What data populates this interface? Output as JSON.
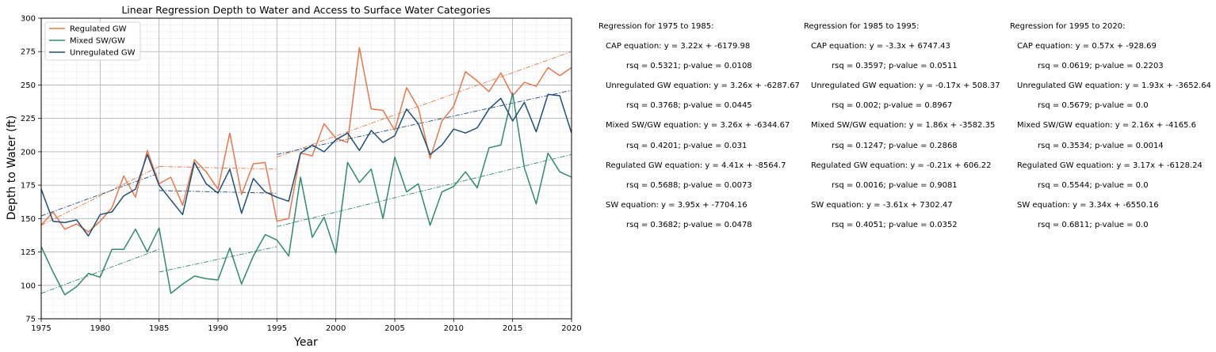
{
  "chart_data": {
    "type": "line",
    "title": "Linear Regression Depth to Water and Access to Surface Water Categories",
    "xlabel": "Year",
    "ylabel": "Depth to Water (ft)",
    "xlim": [
      1975,
      2020
    ],
    "ylim": [
      75,
      300
    ],
    "xticks": [
      1975,
      1980,
      1985,
      1990,
      1995,
      2000,
      2005,
      2010,
      2015,
      2020
    ],
    "yticks": [
      75,
      100,
      125,
      150,
      175,
      200,
      225,
      250,
      275,
      300
    ],
    "grid": true,
    "legend_position": "top-left",
    "x": [
      1975,
      1976,
      1977,
      1978,
      1979,
      1980,
      1981,
      1982,
      1983,
      1984,
      1985,
      1986,
      1987,
      1988,
      1989,
      1990,
      1991,
      1992,
      1993,
      1994,
      1995,
      1996,
      1997,
      1998,
      1999,
      2000,
      2001,
      2002,
      2003,
      2004,
      2005,
      2006,
      2007,
      2008,
      2009,
      2010,
      2011,
      2012,
      2013,
      2014,
      2015,
      2016,
      2017,
      2018,
      2019,
      2020
    ],
    "series": [
      {
        "name": "Regulated GW",
        "color": "#E8784A",
        "values": [
          145,
          155,
          142,
          146,
          140,
          148,
          158,
          182,
          166,
          201,
          176,
          181,
          160,
          194,
          185,
          172,
          214,
          168,
          191,
          192,
          148,
          150,
          199,
          197,
          221,
          210,
          207,
          278,
          232,
          231,
          216,
          248,
          233,
          195,
          223,
          234,
          260,
          253,
          245,
          259,
          242,
          252,
          249,
          263,
          257,
          263
        ]
      },
      {
        "name": "Mixed SW/GW",
        "color": "#2E8B6B",
        "values": [
          129,
          110,
          93,
          99,
          109,
          106,
          127,
          127,
          142,
          125,
          143,
          94,
          101,
          107,
          105,
          104,
          128,
          101,
          122,
          138,
          134,
          122,
          181,
          136,
          151,
          124,
          192,
          177,
          187,
          150,
          196,
          170,
          176,
          145,
          170,
          174,
          185,
          173,
          203,
          205,
          244,
          188,
          161,
          199,
          185,
          181
        ]
      },
      {
        "name": "Unregulated GW",
        "color": "#1F4E79",
        "values": [
          172,
          148,
          147,
          149,
          137,
          153,
          155,
          167,
          172,
          198,
          175,
          164,
          153,
          192,
          176,
          169,
          187,
          154,
          180,
          170,
          166,
          163,
          199,
          205,
          200,
          209,
          214,
          201,
          216,
          207,
          212,
          232,
          221,
          198,
          205,
          217,
          214,
          218,
          232,
          240,
          223,
          237,
          215,
          243,
          242,
          214
        ]
      }
    ],
    "regression_lines": [
      {
        "series": "Regulated GW",
        "x": [
          1975,
          1985
        ],
        "y": [
          145,
          189
        ]
      },
      {
        "series": "Regulated GW",
        "x": [
          1985,
          1995
        ],
        "y": [
          189,
          187
        ]
      },
      {
        "series": "Regulated GW",
        "x": [
          1995,
          2020
        ],
        "y": [
          196,
          275
        ]
      },
      {
        "series": "Mixed SW/GW",
        "x": [
          1975,
          1985
        ],
        "y": [
          94,
          127
        ]
      },
      {
        "series": "Mixed SW/GW",
        "x": [
          1985,
          1995
        ],
        "y": [
          110,
          129
        ]
      },
      {
        "series": "Mixed SW/GW",
        "x": [
          1995,
          2020
        ],
        "y": [
          144,
          198
        ]
      },
      {
        "series": "Unregulated GW",
        "x": [
          1975,
          1985
        ],
        "y": [
          152,
          184
        ]
      },
      {
        "series": "Unregulated GW",
        "x": [
          1985,
          1995
        ],
        "y": [
          171,
          169
        ]
      },
      {
        "series": "Unregulated GW",
        "x": [
          1995,
          2020
        ],
        "y": [
          198,
          246
        ]
      }
    ]
  },
  "regression_blocks": [
    {
      "header": "Regression for 1975 to 1985:",
      "lines": [
        "CAP equation: y = 3.22x + -6179.98",
        "rsq = 0.5321; p-value = 0.0108",
        "Unregulated GW equation: y = 3.26x + -6287.67",
        "rsq = 0.3768; p-value = 0.0445",
        "Mixed SW/GW equation: y = 3.26x + -6344.67",
        "rsq = 0.4201; p-value = 0.031",
        "Regulated GW equation: y = 4.41x + -8564.7",
        "rsq = 0.5688; p-value = 0.0073",
        "SW equation: y = 3.95x + -7704.16",
        "rsq = 0.3682; p-value = 0.0478"
      ]
    },
    {
      "header": "Regression for 1985 to 1995:",
      "lines": [
        "CAP equation: y = -3.3x + 6747.43",
        "rsq = 0.3597; p-value = 0.0511",
        "Unregulated GW equation: y = -0.17x + 508.37",
        "rsq = 0.002; p-value = 0.8967",
        "Mixed SW/GW equation: y = 1.86x + -3582.35",
        "rsq = 0.1247; p-value = 0.2868",
        "Regulated GW equation: y = -0.21x + 606.22",
        "rsq = 0.0016; p-value = 0.9081",
        "SW equation: y = -3.61x + 7302.47",
        "rsq = 0.4051; p-value = 0.0352"
      ]
    },
    {
      "header": "Regression for 1995 to 2020:",
      "lines": [
        "CAP equation: y = 0.57x + -928.69",
        "rsq = 0.0619; p-value = 0.2203",
        "Unregulated GW equation: y = 1.93x + -3652.64",
        "rsq = 0.5679; p-value = 0.0",
        "Mixed SW/GW equation: y = 2.16x + -4165.6",
        "rsq = 0.3534; p-value = 0.0014",
        "Regulated GW equation: y = 3.17x + -6128.24",
        "rsq = 0.5544; p-value = 0.0",
        "SW equation: y = 3.34x + -6550.16",
        "rsq = 0.6811; p-value = 0.0"
      ]
    }
  ]
}
